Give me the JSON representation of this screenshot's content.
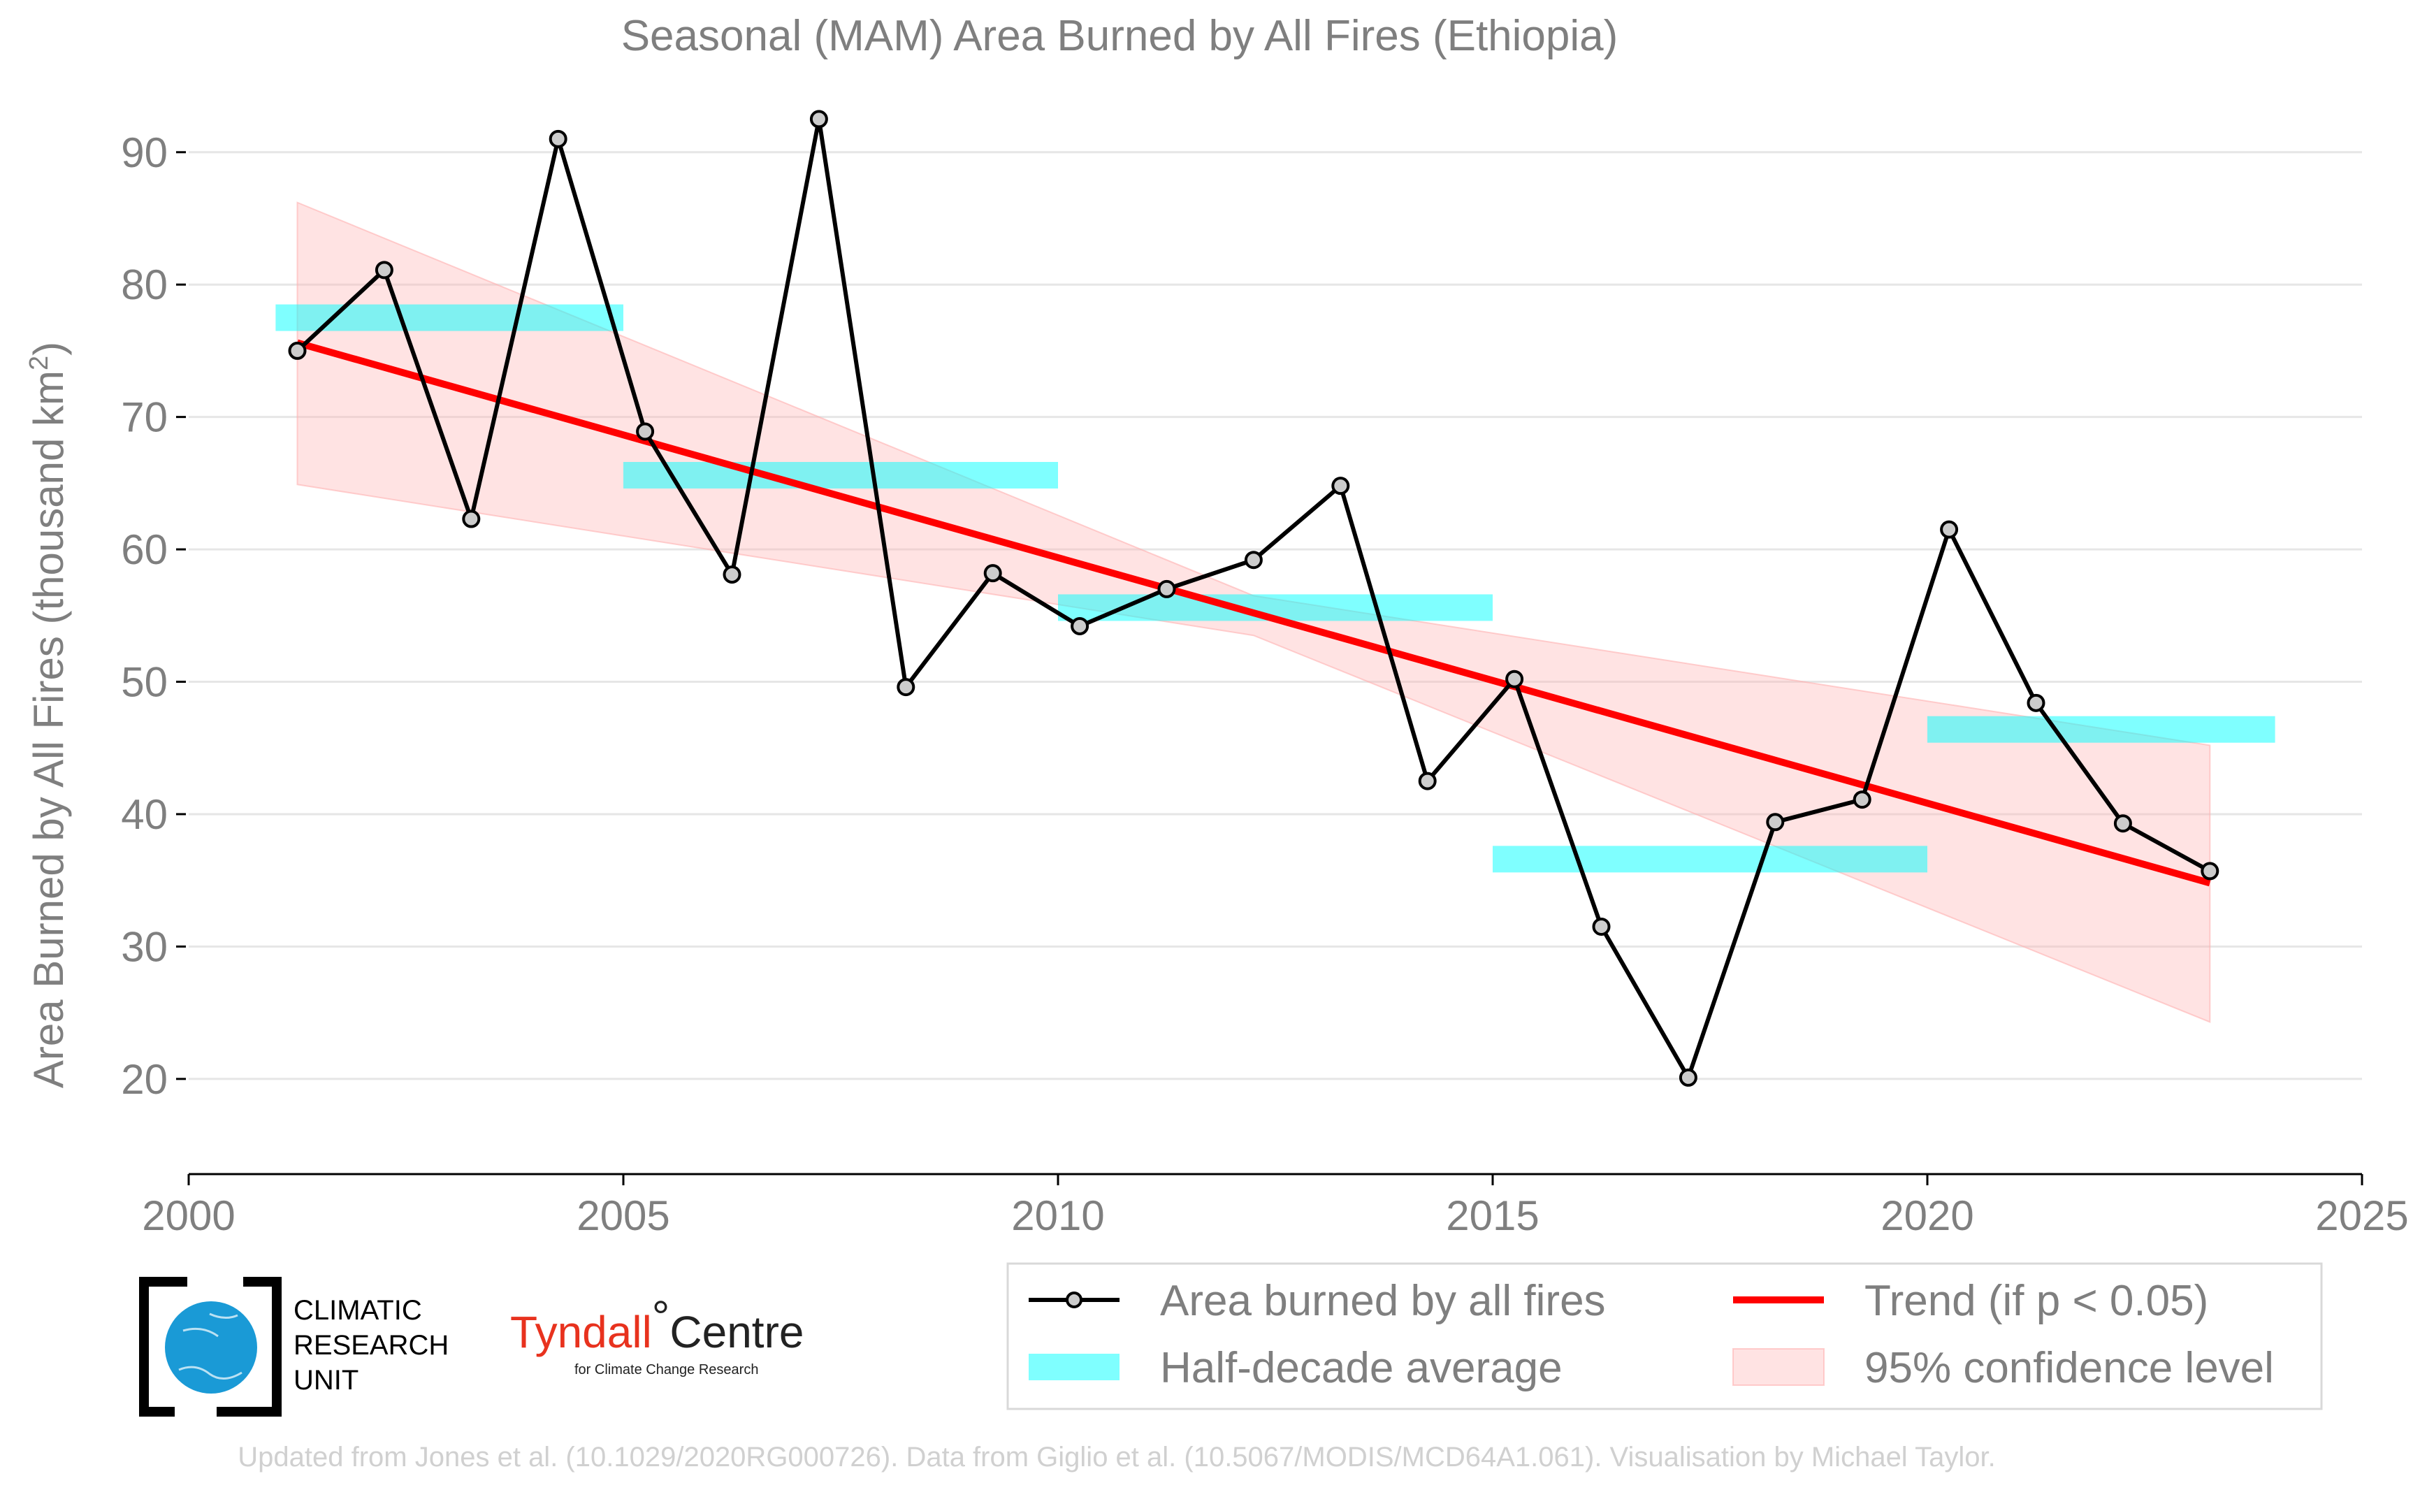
{
  "chart_data": {
    "type": "line",
    "title": "Seasonal (MAM) Area Burned by All Fires (Ethiopia)",
    "xlabel": "",
    "ylabel_main": "Area Burned by All Fires (thousand km",
    "ylabel_sup": "2",
    "ylabel_close": ")",
    "xlim": [
      2000,
      2025
    ],
    "ylim": [
      14.5,
      94
    ],
    "x_ticks": [
      2000,
      2005,
      2010,
      2015,
      2020,
      2025
    ],
    "y_ticks": [
      20,
      30,
      40,
      50,
      60,
      70,
      80,
      90
    ],
    "grid": "horizontal",
    "series": [
      {
        "name": "Area burned by all fires",
        "color": "#000000",
        "marker_fill": "#cccccc",
        "x": [
          2001.25,
          2002.25,
          2003.25,
          2004.25,
          2005.25,
          2006.25,
          2007.25,
          2008.25,
          2009.25,
          2010.25,
          2011.25,
          2012.25,
          2013.25,
          2014.25,
          2015.25,
          2016.25,
          2017.25,
          2018.25,
          2019.25,
          2020.25,
          2021.25,
          2022.25,
          2023.25
        ],
        "y": [
          75.0,
          81.1,
          62.3,
          91.0,
          68.9,
          58.1,
          92.5,
          49.6,
          58.2,
          54.2,
          57.0,
          59.2,
          64.8,
          42.5,
          50.2,
          31.5,
          20.1,
          39.4,
          41.1,
          61.5,
          48.4,
          39.3,
          35.7
        ]
      },
      {
        "name": "Half-decade average",
        "color": "#00ffff",
        "segments": [
          {
            "x0": 2001.0,
            "x1": 2005.0,
            "y": 77.5
          },
          {
            "x0": 2005.0,
            "x1": 2010.0,
            "y": 65.6
          },
          {
            "x0": 2010.0,
            "x1": 2015.0,
            "y": 55.6
          },
          {
            "x0": 2015.0,
            "x1": 2020.0,
            "y": 36.6
          },
          {
            "x0": 2020.0,
            "x1": 2024.0,
            "y": 46.4
          }
        ]
      },
      {
        "name": "Trend (if p < 0.05)",
        "color": "#ff0000",
        "x": [
          2001.25,
          2023.25
        ],
        "y": [
          75.6,
          34.8
        ]
      },
      {
        "name": "95% confidence level",
        "color": "#ffb0b0",
        "x": [
          2001.25,
          2012.25,
          2023.25
        ],
        "upper": [
          86.2,
          56.5,
          45.2
        ],
        "lower": [
          64.9,
          53.5,
          24.3
        ]
      }
    ],
    "legend": {
      "placement": "bottom-right",
      "entries": [
        "Area burned by all fires",
        "Trend (if p < 0.05)",
        "Half-decade average",
        "95% confidence level"
      ]
    }
  },
  "logos": {
    "cru_lines": [
      "CLIMATIC",
      "RESEARCH",
      "UNIT"
    ],
    "tyndall_main": "Tyndall",
    "tyndall_degree": "°",
    "tyndall_centre": "Centre",
    "tyndall_sub": "for Climate Change Research"
  },
  "credits": "Updated from Jones et al. (10.1029/2020RG000726). Data from Giglio et al. (10.5067/MODIS/MCD64A1.061). Visualisation by Michael Taylor."
}
